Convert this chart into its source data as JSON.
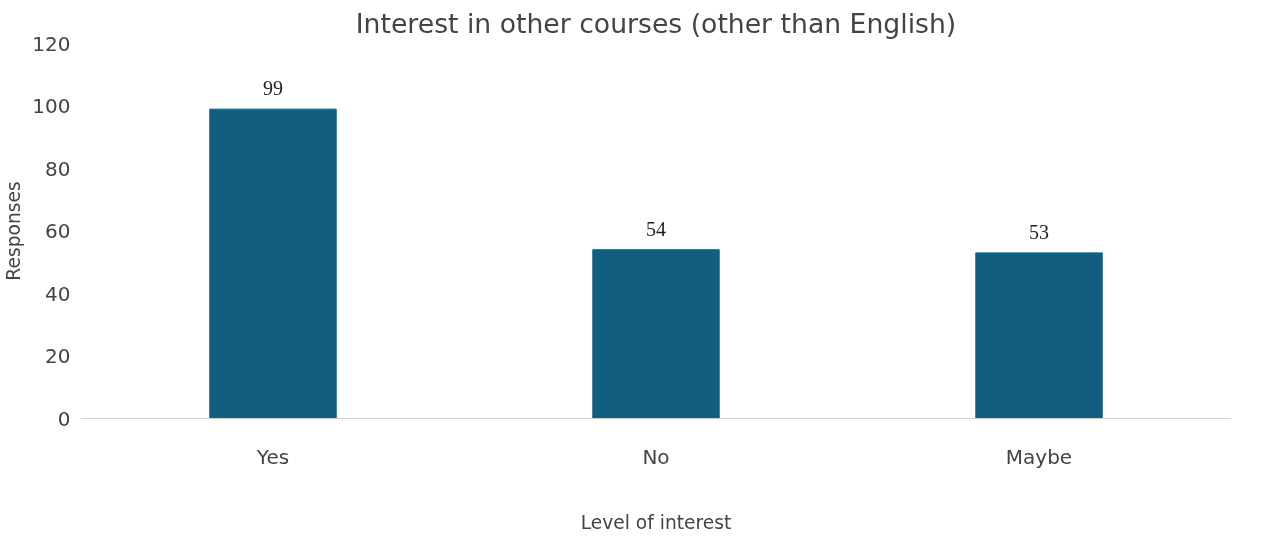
{
  "chart_data": {
    "type": "bar",
    "title": "Interest in other courses (other than English)",
    "xlabel": "Level of interest",
    "ylabel": "Responses",
    "categories": [
      "Yes",
      "No",
      "Maybe"
    ],
    "values": [
      99,
      54,
      53
    ],
    "color": "#115e7e",
    "ylim": [
      0,
      120
    ],
    "yticks": [
      0,
      20,
      40,
      60,
      80,
      100,
      120
    ],
    "grid": false,
    "data_labels": true
  }
}
